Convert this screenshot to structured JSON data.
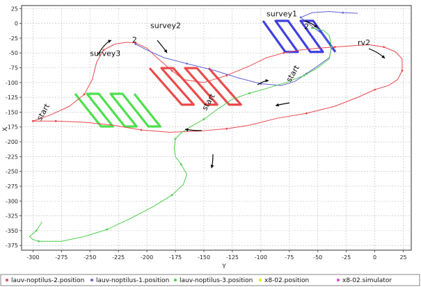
{
  "chart_data": {
    "type": "line",
    "xlabel": "Y",
    "ylabel": "X",
    "xlim": [
      -310,
      32
    ],
    "ylim": [
      -383,
      30
    ],
    "x_ticks": [
      -300,
      -275,
      -250,
      -225,
      -200,
      -175,
      -150,
      -125,
      -100,
      -75,
      -50,
      -25,
      0,
      25
    ],
    "y_ticks": [
      25,
      0,
      -25,
      -50,
      -75,
      -100,
      -125,
      -150,
      -175,
      -200,
      -225,
      -250,
      -275,
      -300,
      -325,
      -350,
      -375
    ],
    "grid": true,
    "legend_placement": "bottom",
    "series": [
      {
        "name": "lauv-noptilus-2.position",
        "color": "#e8484e",
        "points": [
          [
            -300,
            -165
          ],
          [
            -285,
            -155
          ],
          [
            -268,
            -140
          ],
          [
            -255,
            -120
          ],
          [
            -248,
            -95
          ],
          [
            -244,
            -65
          ],
          [
            -238,
            -45
          ],
          [
            -228,
            -35
          ],
          [
            -218,
            -32
          ],
          [
            -210,
            -33
          ],
          [
            -200,
            -42
          ],
          [
            -190,
            -60
          ],
          [
            -178,
            -80
          ],
          [
            -168,
            -95
          ],
          [
            -150,
            -100
          ],
          [
            -130,
            -88
          ],
          [
            -110,
            -72
          ],
          [
            -95,
            -58
          ],
          [
            -80,
            -50
          ],
          [
            -65,
            -45
          ],
          [
            -50,
            -42
          ],
          [
            -35,
            -40
          ],
          [
            -20,
            -38
          ],
          [
            -5,
            -36
          ],
          [
            8,
            -40
          ],
          [
            18,
            -48
          ],
          [
            24,
            -60
          ],
          [
            24,
            -80
          ],
          [
            20,
            -95
          ],
          [
            12,
            -105
          ],
          [
            0,
            -112
          ],
          [
            -15,
            -125
          ],
          [
            -35,
            -140
          ],
          [
            -60,
            -152
          ],
          [
            -85,
            -160
          ],
          [
            -110,
            -172
          ],
          [
            -130,
            -178
          ],
          [
            -155,
            -182
          ],
          [
            -180,
            -184
          ],
          [
            -205,
            -180
          ],
          [
            -230,
            -172
          ],
          [
            -255,
            -167
          ],
          [
            -280,
            -165
          ],
          [
            -300,
            -165
          ]
        ]
      },
      {
        "name": "lauv-noptilus-1.position",
        "color": "#6060d6",
        "points": [
          [
            -210,
            -35
          ],
          [
            -200,
            -45
          ],
          [
            -185,
            -58
          ],
          [
            -165,
            -68
          ],
          [
            -140,
            -80
          ],
          [
            -120,
            -92
          ],
          [
            -100,
            -102
          ],
          [
            -82,
            -105
          ],
          [
            -70,
            -98
          ],
          [
            -60,
            -85
          ],
          [
            -50,
            -72
          ],
          [
            -40,
            -58
          ],
          [
            -38,
            -42
          ],
          [
            -45,
            -20
          ],
          [
            -55,
            -5
          ],
          [
            -65,
            10
          ],
          [
            -55,
            18
          ],
          [
            -40,
            20
          ],
          [
            -28,
            18
          ],
          [
            -15,
            17
          ]
        ]
      },
      {
        "name": "lauv-noptilus-3.position",
        "color": "#4ccd4c",
        "points": [
          [
            -55,
            -8
          ],
          [
            -45,
            -12
          ],
          [
            -40,
            -20
          ],
          [
            -38,
            -40
          ],
          [
            -40,
            -60
          ],
          [
            -50,
            -75
          ],
          [
            -62,
            -88
          ],
          [
            -78,
            -100
          ],
          [
            -95,
            -110
          ],
          [
            -110,
            -118
          ],
          [
            -125,
            -128
          ],
          [
            -138,
            -145
          ],
          [
            -150,
            -162
          ],
          [
            -162,
            -175
          ],
          [
            -170,
            -185
          ],
          [
            -175,
            -195
          ],
          [
            -176,
            -210
          ],
          [
            -175,
            -225
          ],
          [
            -170,
            -238
          ],
          [
            -165,
            -255
          ],
          [
            -168,
            -272
          ],
          [
            -178,
            -290
          ],
          [
            -195,
            -310
          ],
          [
            -215,
            -330
          ],
          [
            -235,
            -348
          ],
          [
            -255,
            -360
          ],
          [
            -275,
            -368
          ],
          [
            -295,
            -368
          ],
          [
            -300,
            -365
          ],
          [
            -303,
            -360
          ],
          [
            -297,
            -350
          ],
          [
            -292,
            -335
          ]
        ]
      },
      {
        "name": "x8-02.position",
        "color": "#e6e600",
        "points": []
      },
      {
        "name": "x8-02.simulator",
        "color": "#e040e0",
        "points": []
      }
    ],
    "annotations": [
      {
        "text": "survey1",
        "x": -95,
        "y": 12
      },
      {
        "text": "survey2",
        "x": -197,
        "y": -8
      },
      {
        "text": "survey3",
        "x": -250,
        "y": -55
      },
      {
        "text": "rv2",
        "x": -15,
        "y": -37
      },
      {
        "text": "start",
        "x": -293,
        "y": -165
      },
      {
        "text": "start",
        "x": -148,
        "y": -148
      },
      {
        "text": "start",
        "x": -74,
        "y": -100
      },
      {
        "text": "2",
        "x": -213,
        "y": -32
      },
      {
        "text": "2",
        "x": -62,
        "y": -10
      }
    ]
  }
}
